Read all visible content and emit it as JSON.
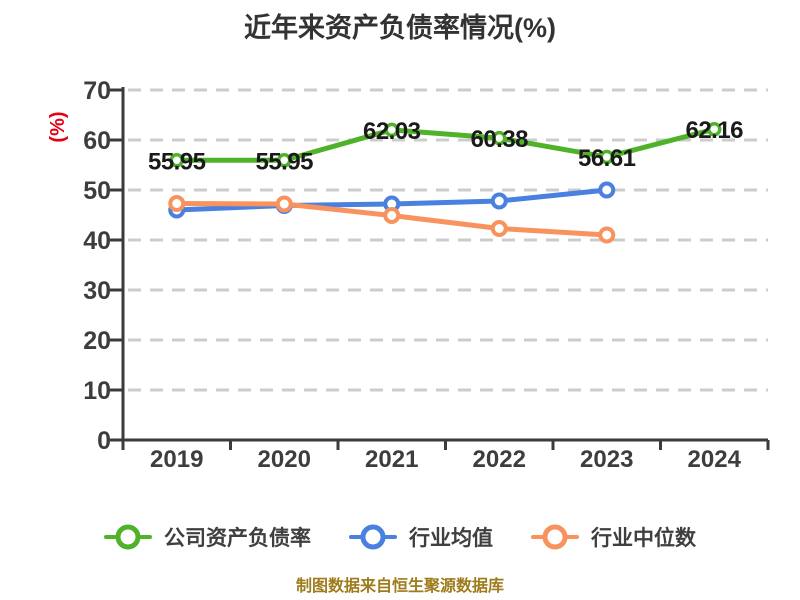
{
  "title": "近年来资产负债率情况(%)",
  "y_axis_unit": "(%)",
  "footer": "制图数据来自恒生聚源数据库",
  "colors": {
    "company": "#4fb229",
    "industry_mean": "#4a80e0",
    "industry_median": "#f8935e",
    "grid": "#cccccc",
    "axis": "#3b3b3b",
    "tick_label": "#3d3d3d",
    "title_text": "#333333",
    "unit_label": "#e60012",
    "footer_text": "#9e7c1c",
    "point_label": "#1a1a1a",
    "marker_fill": "#ffffff"
  },
  "legend": {
    "items": [
      {
        "label": "公司资产负债率",
        "color": "#4fb229"
      },
      {
        "label": "行业均值",
        "color": "#4a80e0"
      },
      {
        "label": "行业中位数",
        "color": "#f8935e"
      }
    ]
  },
  "chart_data": {
    "type": "line",
    "title": "近年来资产负债率情况(%)",
    "ylabel": "(%)",
    "xlabel": "",
    "ylim": [
      0,
      70
    ],
    "ytick_step": 10,
    "grid": "horizontal-dashed",
    "legend_position": "bottom",
    "categories": [
      "2019",
      "2020",
      "2021",
      "2022",
      "2023",
      "2024"
    ],
    "series": [
      {
        "key": "company",
        "name": "公司资产负债率",
        "color": "#4fb229",
        "values": [
          55.95,
          55.95,
          62.03,
          60.38,
          56.61,
          62.16
        ],
        "labels_shown": true
      },
      {
        "key": "industry-mean",
        "name": "行业均值",
        "color": "#4a80e0",
        "values": [
          46.0,
          46.9,
          47.2,
          47.8,
          50.0,
          null
        ],
        "labels_shown": false
      },
      {
        "key": "industry-median",
        "name": "行业中位数",
        "color": "#f8935e",
        "values": [
          47.3,
          47.2,
          44.9,
          42.3,
          41.0,
          null
        ],
        "labels_shown": false
      }
    ]
  }
}
